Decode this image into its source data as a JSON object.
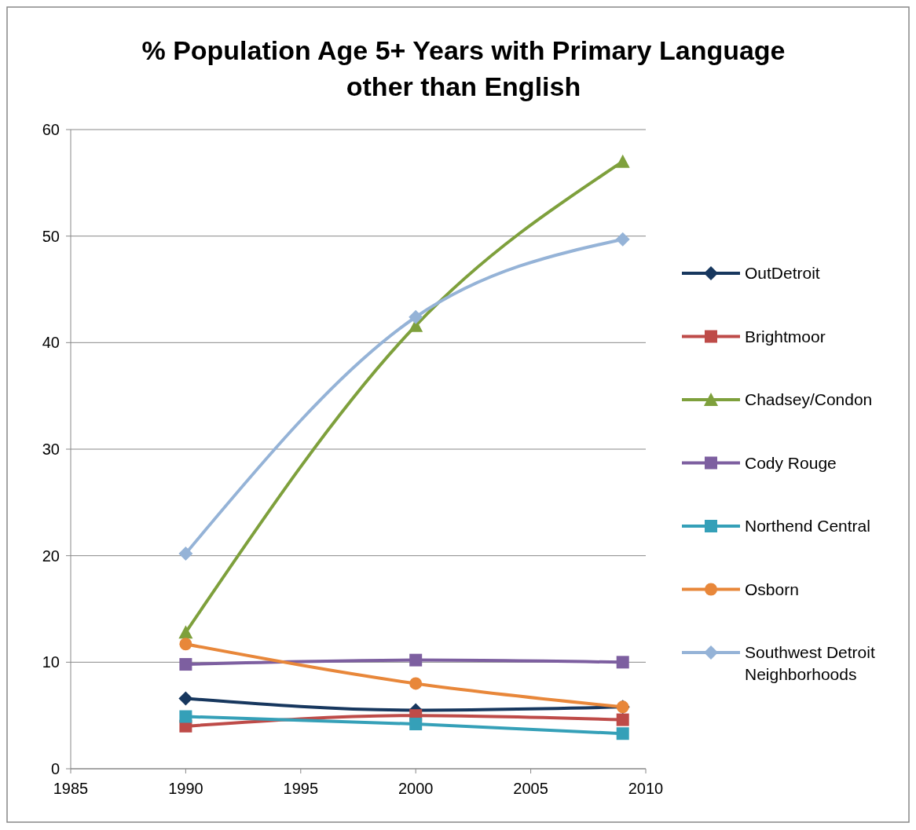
{
  "chart_data": {
    "type": "line",
    "title": "% Population Age 5+ Years with Primary Language other than English",
    "x": [
      1990,
      2000,
      2009
    ],
    "xlim": [
      1985,
      2010
    ],
    "xticks": [
      1985,
      1990,
      1995,
      2000,
      2005,
      2010
    ],
    "ylim": [
      0,
      60
    ],
    "yticks": [
      0,
      10,
      20,
      30,
      40,
      50,
      60
    ],
    "grid": "y",
    "legend": "right",
    "series": [
      {
        "name": "OutDetroit",
        "color": "#17375e",
        "marker": "diamond",
        "values": [
          6.6,
          5.5,
          5.8
        ]
      },
      {
        "name": "Brightmoor",
        "color": "#be4b48",
        "marker": "square",
        "values": [
          4.0,
          5.0,
          4.6
        ]
      },
      {
        "name": "Chadsey/Condon",
        "color": "#7ea03c",
        "marker": "triangle",
        "values": [
          12.8,
          41.6,
          57.0
        ]
      },
      {
        "name": "Cody Rouge",
        "color": "#7d5fa0",
        "marker": "square",
        "values": [
          9.8,
          10.2,
          10.0
        ]
      },
      {
        "name": "Northend Central",
        "color": "#35a0b8",
        "marker": "square",
        "values": [
          4.9,
          4.2,
          3.3
        ]
      },
      {
        "name": "Osborn",
        "color": "#e8873a",
        "marker": "circle",
        "values": [
          11.7,
          8.0,
          5.8
        ]
      },
      {
        "name": "Southwest Detroit Neighborhoods",
        "color": "#95b3d7",
        "marker": "diamond",
        "values": [
          20.2,
          42.4,
          49.7
        ]
      }
    ]
  }
}
